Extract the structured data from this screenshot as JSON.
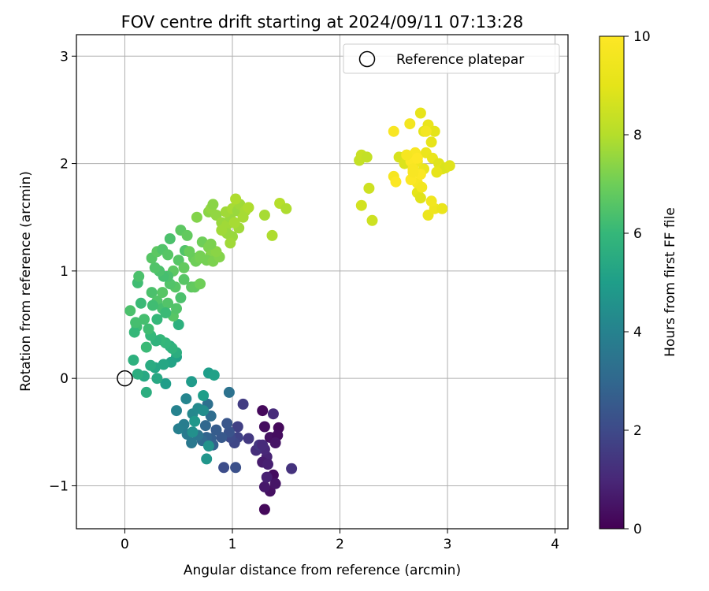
{
  "chart_data": {
    "type": "scatter",
    "title": "FOV centre drift starting at 2024/09/11 07:13:28",
    "xlabel": "Angular distance from reference (arcmin)",
    "ylabel": "Rotation from reference (arcmin)",
    "xlim": [
      -0.45,
      4.12
    ],
    "ylim": [
      -1.4,
      3.2
    ],
    "xticks": [
      0,
      1,
      2,
      3,
      4
    ],
    "xtick_labels": [
      "0",
      "1",
      "2",
      "3",
      "4"
    ],
    "yticks": [
      -1,
      0,
      1,
      2,
      3
    ],
    "ytick_labels": [
      "−1",
      "0",
      "1",
      "2",
      "3"
    ],
    "grid": true,
    "legend": {
      "position": "top-right",
      "label": "Reference platepar"
    },
    "colorbar": {
      "label": "Hours from first FF file",
      "range": [
        0,
        10
      ],
      "ticks": [
        "0",
        "2",
        "4",
        "6",
        "8",
        "10"
      ],
      "colormap": "viridis"
    },
    "reference_point": {
      "x": 0,
      "y": 0
    },
    "series": [
      {
        "points": [
          [
            1.28,
            -0.3,
            0.2
          ],
          [
            1.3,
            -0.45,
            0.3
          ],
          [
            1.35,
            -0.55,
            0.4
          ],
          [
            1.43,
            -0.46,
            0.2
          ],
          [
            1.42,
            -0.53,
            0.3
          ],
          [
            1.4,
            -0.6,
            0.5
          ],
          [
            1.38,
            -0.9,
            0.3
          ],
          [
            1.35,
            -1.05,
            0.4
          ],
          [
            1.3,
            -1.22,
            0.2
          ],
          [
            1.3,
            -1.01,
            0.6
          ],
          [
            1.32,
            -0.92,
            0.8
          ],
          [
            1.4,
            -0.98,
            0.5
          ],
          [
            1.32,
            -0.73,
            0.9
          ],
          [
            1.28,
            -0.78,
            0.7
          ],
          [
            1.38,
            -0.33,
            1.1
          ],
          [
            1.55,
            -0.84,
            1.3
          ],
          [
            1.3,
            -0.66,
            1.0
          ],
          [
            1.22,
            -0.67,
            1.2
          ],
          [
            1.25,
            -0.62,
            1.4
          ],
          [
            1.33,
            -0.8,
            0.8
          ],
          [
            1.28,
            -0.62,
            1.1
          ],
          [
            1.15,
            -0.56,
            1.5
          ],
          [
            1.1,
            -0.24,
            1.6
          ],
          [
            1.05,
            -0.45,
            1.7
          ],
          [
            1.05,
            -0.55,
            1.8
          ],
          [
            1.02,
            -0.6,
            1.9
          ],
          [
            0.98,
            -0.55,
            2.0
          ],
          [
            0.92,
            -0.83,
            2.1
          ],
          [
            1.03,
            -0.83,
            2.2
          ],
          [
            0.97,
            -0.5,
            2.3
          ],
          [
            0.95,
            -0.42,
            2.4
          ],
          [
            0.9,
            -0.55,
            2.5
          ],
          [
            0.85,
            -0.48,
            2.6
          ],
          [
            0.8,
            -0.56,
            2.7
          ],
          [
            0.82,
            -0.62,
            2.8
          ],
          [
            0.76,
            -0.55,
            2.9
          ],
          [
            0.75,
            -0.44,
            3.0
          ],
          [
            0.72,
            -0.58,
            3.1
          ],
          [
            0.8,
            -0.35,
            3.2
          ],
          [
            0.77,
            -0.24,
            3.3
          ],
          [
            0.97,
            -0.13,
            3.4
          ],
          [
            0.68,
            -0.53,
            3.5
          ],
          [
            0.62,
            -0.6,
            3.6
          ],
          [
            0.58,
            -0.52,
            3.7
          ],
          [
            0.55,
            -0.43,
            3.8
          ],
          [
            0.5,
            -0.47,
            3.9
          ],
          [
            0.48,
            -0.3,
            4.0
          ],
          [
            0.57,
            -0.19,
            4.1
          ],
          [
            0.63,
            -0.33,
            4.2
          ],
          [
            0.68,
            -0.28,
            4.3
          ],
          [
            0.73,
            -0.3,
            4.4
          ],
          [
            0.63,
            -0.5,
            4.5
          ],
          [
            0.78,
            -0.63,
            4.6
          ],
          [
            0.76,
            -0.75,
            4.7
          ],
          [
            0.65,
            -0.4,
            4.8
          ],
          [
            0.62,
            -0.03,
            4.9
          ],
          [
            0.73,
            -0.16,
            5.0
          ],
          [
            0.78,
            0.05,
            5.0
          ],
          [
            0.83,
            0.03,
            5.1
          ],
          [
            0.38,
            -0.05,
            5.0
          ],
          [
            0.48,
            0.2,
            5.1
          ],
          [
            0.43,
            0.15,
            5.2
          ],
          [
            0.36,
            0.13,
            5.3
          ],
          [
            0.3,
            0.0,
            5.4
          ],
          [
            0.28,
            0.1,
            5.3
          ],
          [
            0.24,
            0.12,
            5.5
          ],
          [
            0.2,
            -0.13,
            5.6
          ],
          [
            0.18,
            0.02,
            5.4
          ],
          [
            0.12,
            0.04,
            5.6
          ],
          [
            0.08,
            0.17,
            5.7
          ],
          [
            0.42,
            0.3,
            5.5
          ],
          [
            0.48,
            0.24,
            5.6
          ],
          [
            0.5,
            0.5,
            5.7
          ],
          [
            0.44,
            0.28,
            5.8
          ],
          [
            0.38,
            0.33,
            5.9
          ],
          [
            0.33,
            0.36,
            6.0
          ],
          [
            0.29,
            0.35,
            5.8
          ],
          [
            0.24,
            0.4,
            6.0
          ],
          [
            0.2,
            0.29,
            6.1
          ],
          [
            0.22,
            0.46,
            6.2
          ],
          [
            0.18,
            0.55,
            6.3
          ],
          [
            0.15,
            0.7,
            6.1
          ],
          [
            0.11,
            0.48,
            6.2
          ],
          [
            0.09,
            0.43,
            6.0
          ],
          [
            0.1,
            0.52,
            6.3
          ],
          [
            0.05,
            0.63,
            6.4
          ],
          [
            0.12,
            0.89,
            6.2
          ],
          [
            0.13,
            0.95,
            6.4
          ],
          [
            0.25,
            0.8,
            6.4
          ],
          [
            0.3,
            0.72,
            6.5
          ],
          [
            0.35,
            0.65,
            6.3
          ],
          [
            0.4,
            0.7,
            6.5
          ],
          [
            0.45,
            0.58,
            6.6
          ],
          [
            0.48,
            0.65,
            6.5
          ],
          [
            0.52,
            0.75,
            6.4
          ],
          [
            0.47,
            0.85,
            6.6
          ],
          [
            0.45,
            1.0,
            6.7
          ],
          [
            0.42,
            0.88,
            6.5
          ],
          [
            0.4,
            0.95,
            6.4
          ],
          [
            0.36,
            0.95,
            6.3
          ],
          [
            0.32,
            1.0,
            6.4
          ],
          [
            0.28,
            1.03,
            6.5
          ],
          [
            0.25,
            1.12,
            6.6
          ],
          [
            0.3,
            1.18,
            6.7
          ],
          [
            0.35,
            1.2,
            6.5
          ],
          [
            0.4,
            1.15,
            6.6
          ],
          [
            0.42,
            1.3,
            6.4
          ],
          [
            0.52,
            1.38,
            6.7
          ],
          [
            0.58,
            1.33,
            6.8
          ],
          [
            0.56,
            1.19,
            6.5
          ],
          [
            0.5,
            1.1,
            6.6
          ],
          [
            0.55,
            1.03,
            6.8
          ],
          [
            0.6,
            1.18,
            6.9
          ],
          [
            0.64,
            1.12,
            6.9
          ],
          [
            0.66,
            1.09,
            7.0
          ],
          [
            0.7,
            1.14,
            7.1
          ],
          [
            0.72,
            1.27,
            7.0
          ],
          [
            0.78,
            1.22,
            7.2
          ],
          [
            0.8,
            1.15,
            7.3
          ],
          [
            0.76,
            1.1,
            7.1
          ],
          [
            0.82,
            1.09,
            7.2
          ],
          [
            0.88,
            1.13,
            7.3
          ],
          [
            0.85,
            1.18,
            7.4
          ],
          [
            0.8,
            1.25,
            7.2
          ],
          [
            0.7,
            1.12,
            7.1
          ],
          [
            0.67,
            1.5,
            7.3
          ],
          [
            0.78,
            1.55,
            7.4
          ],
          [
            0.8,
            1.58,
            7.5
          ],
          [
            0.82,
            1.62,
            7.4
          ],
          [
            0.85,
            1.52,
            7.5
          ],
          [
            0.9,
            1.45,
            7.6
          ],
          [
            0.93,
            1.37,
            7.5
          ],
          [
            0.95,
            1.43,
            7.7
          ],
          [
            0.98,
            1.5,
            7.6
          ],
          [
            0.94,
            1.55,
            7.7
          ],
          [
            1.0,
            1.58,
            7.8
          ],
          [
            1.05,
            1.56,
            7.6
          ],
          [
            1.07,
            1.62,
            7.7
          ],
          [
            1.1,
            1.5,
            7.8
          ],
          [
            1.03,
            1.67,
            7.9
          ],
          [
            1.12,
            1.56,
            7.8
          ],
          [
            1.15,
            1.59,
            7.9
          ],
          [
            1.06,
            1.4,
            7.7
          ],
          [
            1.0,
            1.32,
            7.6
          ],
          [
            0.98,
            1.26,
            7.7
          ],
          [
            1.02,
            1.45,
            7.8
          ],
          [
            1.3,
            1.52,
            7.8
          ],
          [
            1.37,
            1.33,
            7.9
          ],
          [
            1.44,
            1.63,
            8.0
          ],
          [
            1.5,
            1.58,
            7.9
          ],
          [
            0.95,
            1.35,
            7.6
          ],
          [
            0.9,
            1.38,
            7.7
          ],
          [
            0.3,
            0.55,
            6.0
          ],
          [
            0.35,
            0.8,
            6.6
          ],
          [
            0.62,
            0.85,
            6.7
          ],
          [
            0.55,
            0.92,
            6.6
          ],
          [
            0.38,
            0.61,
            6.1
          ],
          [
            0.26,
            0.68,
            6.2
          ],
          [
            0.65,
            0.85,
            6.8
          ],
          [
            0.7,
            0.88,
            7.0
          ],
          [
            2.18,
            2.03,
            8.3
          ],
          [
            2.2,
            2.08,
            8.4
          ],
          [
            2.25,
            2.06,
            8.3
          ],
          [
            2.27,
            1.77,
            8.5
          ],
          [
            2.2,
            1.61,
            8.6
          ],
          [
            2.3,
            1.47,
            8.5
          ],
          [
            2.55,
            2.06,
            8.7
          ],
          [
            2.6,
            2.0,
            8.8
          ],
          [
            2.62,
            2.08,
            8.9
          ],
          [
            2.68,
            1.98,
            8.8
          ],
          [
            2.72,
            1.73,
            9.0
          ],
          [
            2.75,
            1.68,
            8.9
          ],
          [
            2.75,
            2.47,
            9.1
          ],
          [
            2.78,
            2.3,
            9.0
          ],
          [
            2.82,
            2.36,
            9.2
          ],
          [
            2.85,
            2.2,
            9.1
          ],
          [
            2.88,
            2.3,
            9.0
          ],
          [
            2.8,
            2.1,
            9.3
          ],
          [
            2.86,
            2.05,
            9.2
          ],
          [
            2.92,
            2.0,
            8.9
          ],
          [
            2.95,
            1.95,
            9.0
          ],
          [
            2.98,
            1.96,
            8.8
          ],
          [
            3.02,
            1.98,
            8.9
          ],
          [
            2.9,
            1.92,
            9.1
          ],
          [
            2.78,
            1.95,
            9.2
          ],
          [
            2.72,
            2.02,
            9.4
          ],
          [
            2.82,
            1.52,
            9.3
          ],
          [
            2.88,
            1.58,
            9.4
          ],
          [
            2.95,
            1.58,
            9.2
          ],
          [
            2.85,
            1.65,
            9.5
          ],
          [
            2.5,
            2.3,
            9.8
          ],
          [
            2.5,
            1.88,
            9.7
          ],
          [
            2.52,
            1.83,
            9.9
          ],
          [
            2.65,
            2.37,
            9.6
          ],
          [
            2.66,
            2.02,
            9.9
          ],
          [
            2.68,
            1.95,
            9.8
          ],
          [
            2.72,
            1.82,
            9.7
          ],
          [
            2.75,
            1.9,
            9.9
          ],
          [
            2.8,
            2.3,
            9.6
          ],
          [
            2.7,
            2.1,
            9.8
          ],
          [
            2.66,
            1.85,
            9.9
          ],
          [
            2.72,
            2.05,
            10.0
          ],
          [
            2.68,
            1.92,
            9.8
          ],
          [
            2.76,
            1.78,
            9.6
          ],
          [
            2.62,
            2.08,
            9.7
          ]
        ]
      }
    ]
  }
}
